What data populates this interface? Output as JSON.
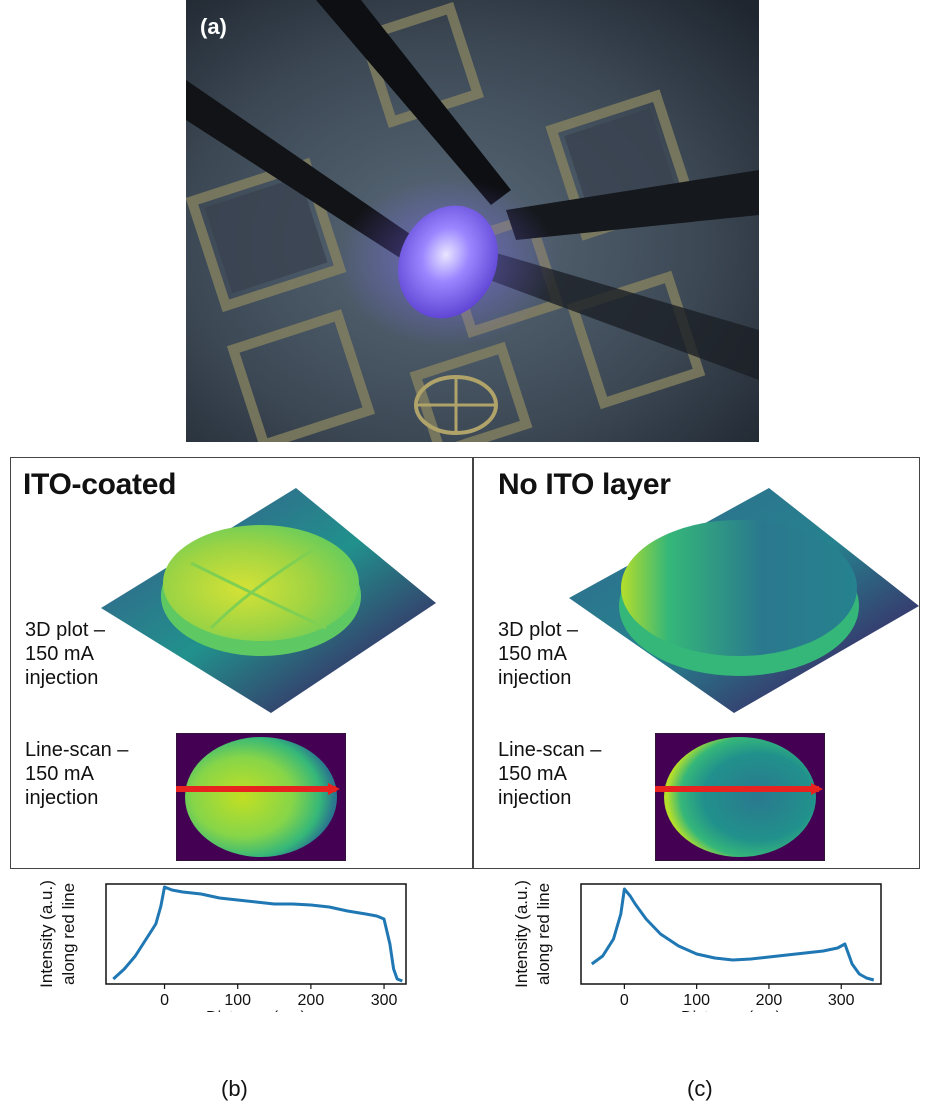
{
  "photo": {
    "label": "(a)"
  },
  "panels": [
    {
      "id": "b",
      "title": "ITO-coated",
      "plot3d_label": [
        "3D plot –",
        "150 mA",
        "injection"
      ],
      "linescan_label": [
        "Line-scan –",
        "150 mA",
        "injection"
      ],
      "caption": "(b)"
    },
    {
      "id": "c",
      "title": "No ITO layer",
      "plot3d_label": [
        "3D plot –",
        "150 mA",
        "injection"
      ],
      "linescan_label": [
        "Line-scan –",
        "150 mA",
        "injection"
      ],
      "caption": "(c)"
    }
  ],
  "colors": {
    "line": "#1f77b4",
    "scan_line": "#e8231f",
    "viridis_low": "#440154",
    "viridis_mid": "#21918c",
    "viridis_high": "#fde725"
  },
  "chart_data": [
    {
      "type": "line",
      "xlabel": "Distance (µm)",
      "ylabel_lines": [
        "Intensity (a.u.)",
        "along red line"
      ],
      "xlim": [
        -80,
        330
      ],
      "ylim": [
        0,
        1
      ],
      "xticks": [
        0,
        100,
        200,
        300
      ],
      "grid": false,
      "x": [
        -70,
        -55,
        -40,
        -25,
        -12,
        -5,
        0,
        10,
        25,
        50,
        75,
        100,
        125,
        150,
        175,
        200,
        225,
        250,
        275,
        290,
        300,
        308,
        313,
        318,
        325
      ],
      "y": [
        0.05,
        0.15,
        0.28,
        0.45,
        0.6,
        0.78,
        0.97,
        0.94,
        0.92,
        0.9,
        0.86,
        0.84,
        0.82,
        0.8,
        0.8,
        0.79,
        0.77,
        0.73,
        0.7,
        0.68,
        0.65,
        0.4,
        0.15,
        0.05,
        0.03
      ]
    },
    {
      "type": "line",
      "xlabel": "Distance (µm)",
      "ylabel_lines": [
        "Intensity (a.u.)",
        "along red line"
      ],
      "xlim": [
        -60,
        355
      ],
      "ylim": [
        0,
        1
      ],
      "xticks": [
        0,
        100,
        200,
        300
      ],
      "grid": false,
      "x": [
        -45,
        -30,
        -15,
        -5,
        0,
        8,
        15,
        30,
        50,
        75,
        100,
        125,
        150,
        175,
        200,
        225,
        250,
        275,
        295,
        305,
        315,
        325,
        335,
        345
      ],
      "y": [
        0.2,
        0.28,
        0.45,
        0.7,
        0.95,
        0.88,
        0.8,
        0.65,
        0.5,
        0.38,
        0.3,
        0.26,
        0.24,
        0.25,
        0.27,
        0.29,
        0.31,
        0.33,
        0.36,
        0.4,
        0.2,
        0.1,
        0.06,
        0.04
      ]
    }
  ]
}
